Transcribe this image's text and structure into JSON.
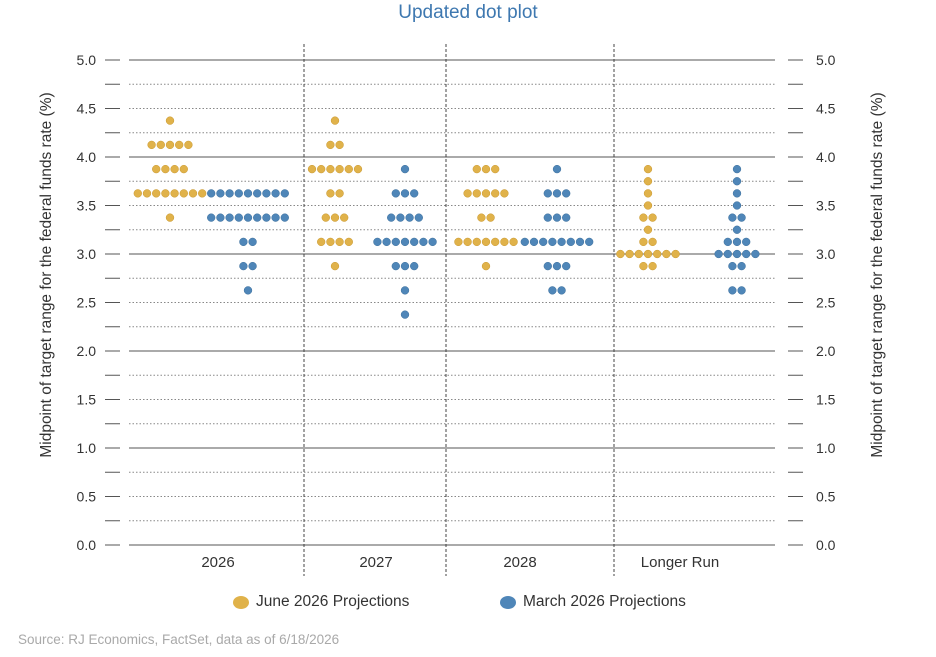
{
  "chart_data": {
    "type": "scatter",
    "title": "Updated dot plot",
    "ylabel": "Midpoint of target range for the federal funds rate (%)",
    "ylim": [
      0,
      5
    ],
    "yticks": [
      "0.0",
      "0.5",
      "1.0",
      "1.5",
      "2.0",
      "2.5",
      "3.0",
      "3.5",
      "4.0",
      "4.5",
      "5.0"
    ],
    "categories": [
      "2026",
      "2027",
      "2028",
      "Longer Run"
    ],
    "grid": "solid at whole numbers, dotted at 0.25 steps",
    "legend_position": "bottom",
    "series": [
      {
        "name": "June 2026 Projections",
        "color": "#e0b24a",
        "points": [
          {
            "x": "2026",
            "y": 4.375,
            "count": 1
          },
          {
            "x": "2026",
            "y": 4.125,
            "count": 5
          },
          {
            "x": "2026",
            "y": 3.875,
            "count": 4
          },
          {
            "x": "2026",
            "y": 3.625,
            "count": 8
          },
          {
            "x": "2026",
            "y": 3.375,
            "count": 1
          },
          {
            "x": "2027",
            "y": 4.375,
            "count": 1
          },
          {
            "x": "2027",
            "y": 4.125,
            "count": 2
          },
          {
            "x": "2027",
            "y": 3.875,
            "count": 6
          },
          {
            "x": "2027",
            "y": 3.625,
            "count": 2
          },
          {
            "x": "2027",
            "y": 3.375,
            "count": 3
          },
          {
            "x": "2027",
            "y": 3.125,
            "count": 4
          },
          {
            "x": "2027",
            "y": 2.875,
            "count": 1
          },
          {
            "x": "2028",
            "y": 3.875,
            "count": 3
          },
          {
            "x": "2028",
            "y": 3.625,
            "count": 5
          },
          {
            "x": "2028",
            "y": 3.375,
            "count": 2
          },
          {
            "x": "2028",
            "y": 3.125,
            "count": 7
          },
          {
            "x": "2028",
            "y": 2.875,
            "count": 1
          },
          {
            "x": "Longer Run",
            "y": 3.875,
            "count": 1
          },
          {
            "x": "Longer Run",
            "y": 3.75,
            "count": 1
          },
          {
            "x": "Longer Run",
            "y": 3.625,
            "count": 1
          },
          {
            "x": "Longer Run",
            "y": 3.5,
            "count": 1
          },
          {
            "x": "Longer Run",
            "y": 3.375,
            "count": 2
          },
          {
            "x": "Longer Run",
            "y": 3.25,
            "count": 1
          },
          {
            "x": "Longer Run",
            "y": 3.125,
            "count": 2
          },
          {
            "x": "Longer Run",
            "y": 3.0,
            "count": 7
          },
          {
            "x": "Longer Run",
            "y": 2.875,
            "count": 2
          }
        ]
      },
      {
        "name": "March 2026 Projections",
        "color": "#4f86b8",
        "points": [
          {
            "x": "2026",
            "y": 3.625,
            "count": 9
          },
          {
            "x": "2026",
            "y": 3.375,
            "count": 9
          },
          {
            "x": "2026",
            "y": 3.125,
            "count": 2
          },
          {
            "x": "2026",
            "y": 2.875,
            "count": 2
          },
          {
            "x": "2026",
            "y": 2.625,
            "count": 1
          },
          {
            "x": "2027",
            "y": 3.875,
            "count": 1
          },
          {
            "x": "2027",
            "y": 3.625,
            "count": 3
          },
          {
            "x": "2027",
            "y": 3.375,
            "count": 4
          },
          {
            "x": "2027",
            "y": 3.125,
            "count": 7
          },
          {
            "x": "2027",
            "y": 2.875,
            "count": 3
          },
          {
            "x": "2027",
            "y": 2.625,
            "count": 1
          },
          {
            "x": "2027",
            "y": 2.375,
            "count": 1
          },
          {
            "x": "2028",
            "y": 3.875,
            "count": 1
          },
          {
            "x": "2028",
            "y": 3.625,
            "count": 3
          },
          {
            "x": "2028",
            "y": 3.375,
            "count": 3
          },
          {
            "x": "2028",
            "y": 3.125,
            "count": 8
          },
          {
            "x": "2028",
            "y": 2.875,
            "count": 3
          },
          {
            "x": "2028",
            "y": 2.625,
            "count": 2
          },
          {
            "x": "Longer Run",
            "y": 3.875,
            "count": 1
          },
          {
            "x": "Longer Run",
            "y": 3.75,
            "count": 1
          },
          {
            "x": "Longer Run",
            "y": 3.625,
            "count": 1
          },
          {
            "x": "Longer Run",
            "y": 3.5,
            "count": 1
          },
          {
            "x": "Longer Run",
            "y": 3.375,
            "count": 2
          },
          {
            "x": "Longer Run",
            "y": 3.25,
            "count": 1
          },
          {
            "x": "Longer Run",
            "y": 3.125,
            "count": 3
          },
          {
            "x": "Longer Run",
            "y": 3.0,
            "count": 5
          },
          {
            "x": "Longer Run",
            "y": 2.875,
            "count": 2
          },
          {
            "x": "Longer Run",
            "y": 2.625,
            "count": 2
          }
        ]
      }
    ]
  },
  "legend": {
    "june_label": "June 2026 Projections",
    "march_label": "March 2026 Projections"
  },
  "source": "Source: RJ Economics, FactSet, data as of 6/18/2026"
}
